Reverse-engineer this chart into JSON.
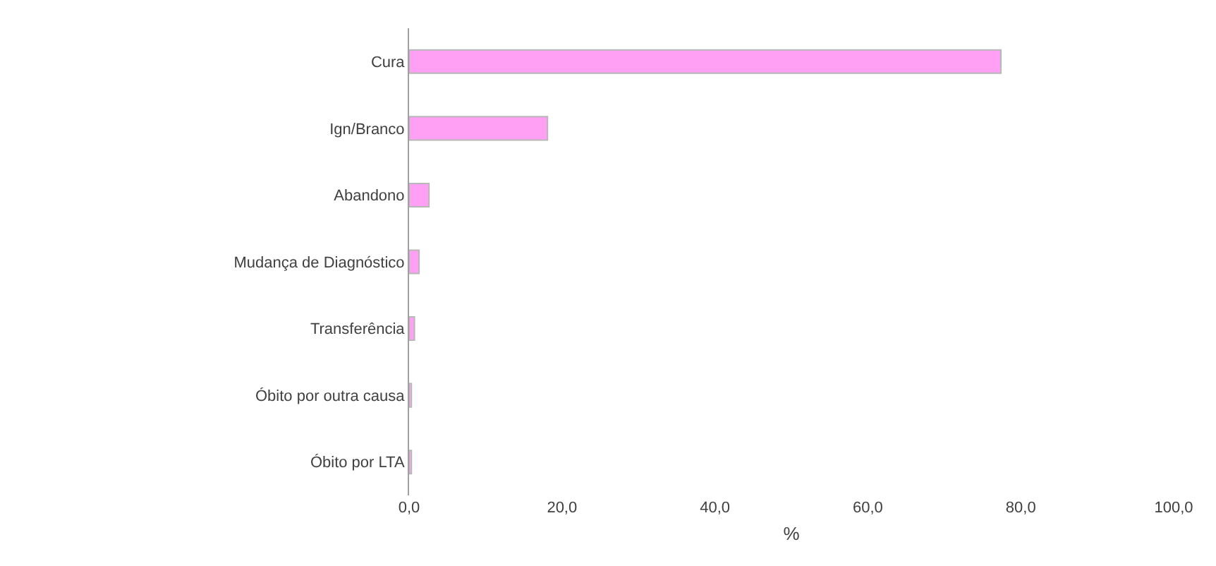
{
  "chart_data": {
    "type": "bar",
    "orientation": "horizontal",
    "xlabel": "%",
    "categories": [
      "Cura",
      "Ign/Branco",
      "Abandono",
      "Mudança de Diagnóstico",
      "Transferência",
      "Óbito por outra causa",
      "Óbito por LTA"
    ],
    "values": [
      77.4,
      18.1,
      2.6,
      1.3,
      0.7,
      0.3,
      0.3
    ],
    "color": "#ffa0f5",
    "xlim": [
      0,
      100
    ],
    "xticks": [
      {
        "value": 0,
        "label": "0,0"
      },
      {
        "value": 20,
        "label": "20,0"
      },
      {
        "value": 40,
        "label": "40,0"
      },
      {
        "value": 60,
        "label": "60,0"
      },
      {
        "value": 80,
        "label": "80,0"
      },
      {
        "value": 100,
        "label": "100,0"
      }
    ],
    "grid": false,
    "legend": false
  }
}
